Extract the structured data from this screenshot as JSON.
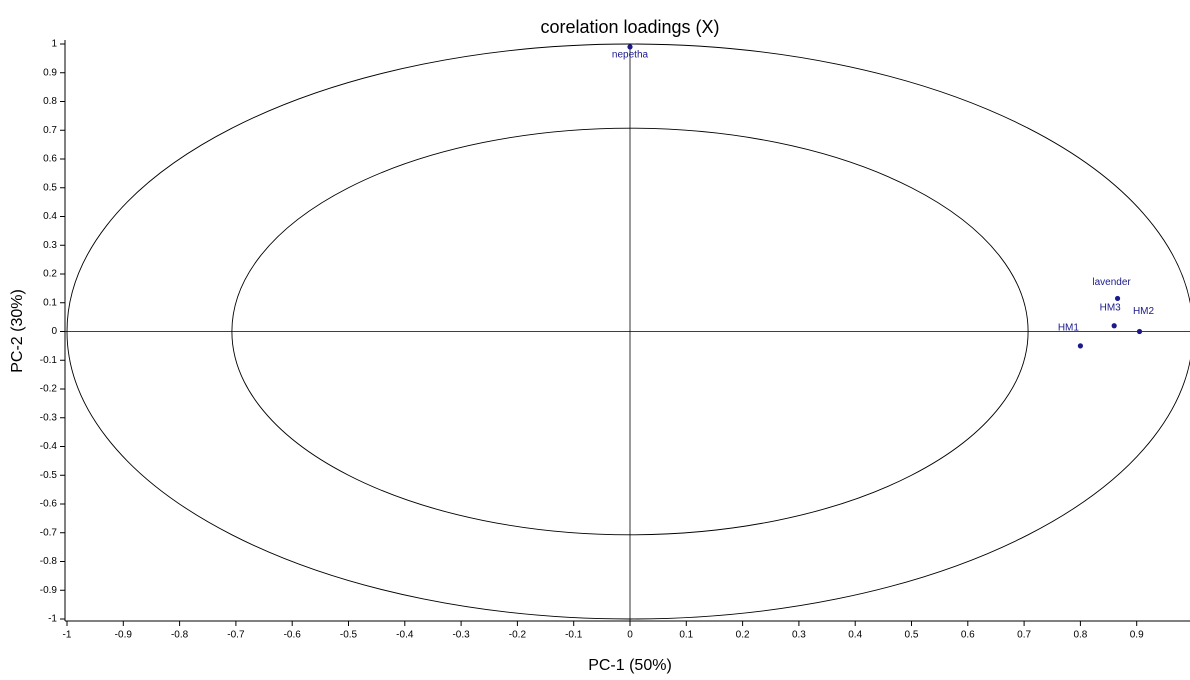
{
  "chart_data": {
    "type": "scatter",
    "title": "corelation loadings (X)",
    "x_label": "PC-1 (50%)",
    "y_label": "PC-2 (30%)",
    "labels": [
      "nepetha",
      "lavender",
      "HM3",
      "HM2",
      "HM1"
    ],
    "x": [
      0.0,
      0.866,
      0.86,
      0.905,
      0.8
    ],
    "y": [
      0.99,
      0.115,
      0.02,
      0.0,
      -0.05
    ],
    "color": "#1a1a8c",
    "xlim": [
      -1,
      1
    ],
    "ylim": [
      -1,
      1
    ],
    "xticks": [
      -1,
      -0.9,
      -0.8,
      -0.7,
      -0.6,
      -0.5,
      -0.4,
      -0.3,
      -0.2,
      -0.1,
      0,
      0.1,
      0.2,
      0.3,
      0.4,
      0.5,
      0.6,
      0.7,
      0.8,
      0.9
    ],
    "yticks": [
      -1,
      -0.9,
      -0.8,
      -0.7,
      -0.6,
      -0.5,
      -0.4,
      -0.3,
      -0.2,
      -0.1,
      0,
      0.1,
      0.2,
      0.3,
      0.4,
      0.5,
      0.6,
      0.7,
      0.8,
      0.9,
      1
    ]
  }
}
